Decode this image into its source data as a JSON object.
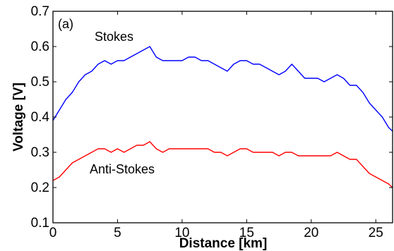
{
  "chart_data": {
    "type": "line",
    "panel_label": "(a)",
    "xlabel": "Distance [km]",
    "ylabel": "Voltage [V]",
    "xlim": [
      0,
      26.3
    ],
    "ylim": [
      0.1,
      0.7
    ],
    "xticks": [
      0,
      5,
      10,
      15,
      20,
      25
    ],
    "yticks": [
      0.1,
      0.2,
      0.3,
      0.4,
      0.5,
      0.6,
      0.7
    ],
    "xtick_labels": [
      "0",
      "5",
      "10",
      "15",
      "20",
      "25"
    ],
    "ytick_labels": [
      "0.1",
      "0.2",
      "0.3",
      "0.4",
      "0.5",
      "0.6",
      "0.7"
    ],
    "grid": false,
    "annotations": [
      {
        "text": "Stokes",
        "x": 4.2,
        "y": 0.635
      },
      {
        "text": "Anti-Stokes",
        "x": 6.7,
        "y": 0.245
      }
    ],
    "series": [
      {
        "name": "Stokes",
        "color": "#0000ff",
        "x": [
          0,
          0.5,
          1.0,
          1.5,
          2.0,
          2.5,
          3.0,
          3.5,
          4.0,
          4.5,
          5.0,
          5.5,
          6.0,
          6.5,
          7.0,
          7.5,
          8.0,
          8.5,
          9.0,
          9.5,
          10.0,
          10.5,
          11.0,
          11.5,
          12.0,
          12.5,
          13.0,
          13.5,
          14.0,
          14.5,
          15.0,
          15.5,
          16.0,
          16.5,
          17.0,
          17.5,
          18.0,
          18.5,
          19.0,
          19.5,
          20.0,
          20.5,
          21.0,
          21.5,
          22.0,
          22.5,
          23.0,
          23.5,
          24.0,
          24.5,
          25.0,
          25.5,
          26.0,
          26.3
        ],
        "y": [
          0.39,
          0.42,
          0.45,
          0.47,
          0.5,
          0.52,
          0.53,
          0.55,
          0.56,
          0.55,
          0.56,
          0.56,
          0.57,
          0.58,
          0.59,
          0.6,
          0.57,
          0.56,
          0.56,
          0.56,
          0.56,
          0.57,
          0.57,
          0.56,
          0.56,
          0.55,
          0.54,
          0.53,
          0.55,
          0.56,
          0.56,
          0.55,
          0.55,
          0.54,
          0.53,
          0.52,
          0.53,
          0.55,
          0.53,
          0.51,
          0.51,
          0.51,
          0.5,
          0.51,
          0.52,
          0.51,
          0.49,
          0.49,
          0.47,
          0.44,
          0.42,
          0.4,
          0.37,
          0.36
        ]
      },
      {
        "name": "Anti-Stokes",
        "color": "#ff0000",
        "x": [
          0,
          0.5,
          1.0,
          1.5,
          2.0,
          2.5,
          3.0,
          3.5,
          4.0,
          4.5,
          5.0,
          5.5,
          6.0,
          6.5,
          7.0,
          7.5,
          8.0,
          8.5,
          9.0,
          9.5,
          10.0,
          10.5,
          11.0,
          11.5,
          12.0,
          12.5,
          13.0,
          13.5,
          14.0,
          14.5,
          15.0,
          15.5,
          16.0,
          16.5,
          17.0,
          17.5,
          18.0,
          18.5,
          19.0,
          19.5,
          20.0,
          20.5,
          21.0,
          21.5,
          22.0,
          22.5,
          23.0,
          23.5,
          24.0,
          24.5,
          25.0,
          25.5,
          26.0,
          26.3
        ],
        "y": [
          0.22,
          0.23,
          0.25,
          0.27,
          0.28,
          0.29,
          0.3,
          0.31,
          0.31,
          0.3,
          0.31,
          0.3,
          0.31,
          0.32,
          0.32,
          0.33,
          0.31,
          0.3,
          0.31,
          0.31,
          0.31,
          0.31,
          0.31,
          0.31,
          0.31,
          0.3,
          0.3,
          0.29,
          0.3,
          0.31,
          0.31,
          0.3,
          0.3,
          0.3,
          0.3,
          0.29,
          0.3,
          0.3,
          0.29,
          0.29,
          0.29,
          0.29,
          0.29,
          0.29,
          0.3,
          0.29,
          0.28,
          0.28,
          0.26,
          0.24,
          0.23,
          0.22,
          0.21,
          0.2
        ]
      }
    ]
  }
}
